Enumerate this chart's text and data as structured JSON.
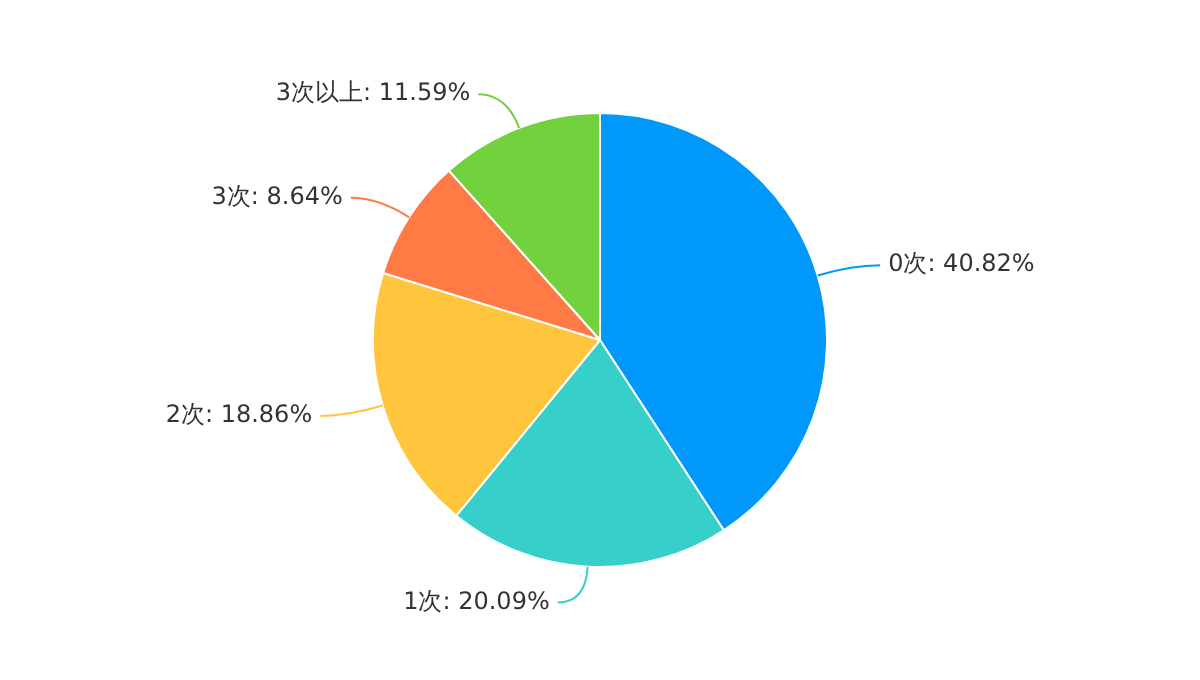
{
  "chart_data": {
    "type": "pie",
    "categories": [
      "0次",
      "1次",
      "2次",
      "3次",
      "3次以上"
    ],
    "values": [
      40.82,
      20.09,
      18.86,
      8.64,
      11.59
    ],
    "colors": [
      "#0098fa",
      "#36cfc9",
      "#ffc53d",
      "#ff7a45",
      "#73d13d"
    ],
    "value_labels": [
      ": 40.82%",
      ": 20.09%",
      ": 18.86%",
      ": 8.64%",
      ": 11.59%"
    ],
    "legend": false
  }
}
